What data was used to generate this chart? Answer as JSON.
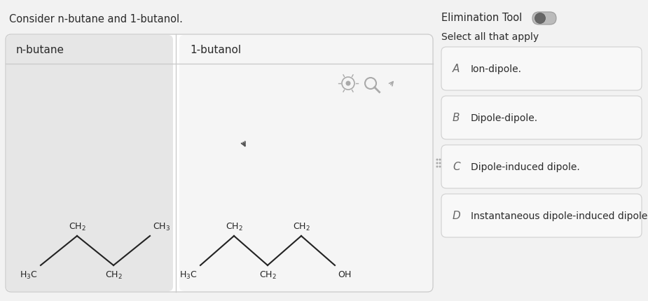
{
  "bg_color": "#f2f2f2",
  "main_panel_bg": "#ffffff",
  "left_col_bg": "#e6e6e6",
  "right_col_bg": "#f5f5f5",
  "question_text": "Consider n-butane and 1-butanol.",
  "elim_tool_text": "Elimination Tool",
  "select_text": "Select all that apply",
  "col1_label": "n-butane",
  "col2_label": "1-butanol",
  "options": [
    {
      "letter": "A",
      "text": "Ion-dipole."
    },
    {
      "letter": "B",
      "text": "Dipole-dipole."
    },
    {
      "letter": "C",
      "text": "Dipole-induced dipole."
    },
    {
      "letter": "D",
      "text": "Instantaneous dipole-induced dipole."
    }
  ],
  "text_color": "#2a2a2a",
  "option_bg": "#f8f8f8",
  "option_border": "#d0d0d0",
  "letter_color": "#666666",
  "toggle_track_color": "#bbbbbb",
  "toggle_knob_color": "#666666",
  "icon_color": "#aaaaaa",
  "bond_color": "#222222",
  "divider_color": "#cccccc"
}
